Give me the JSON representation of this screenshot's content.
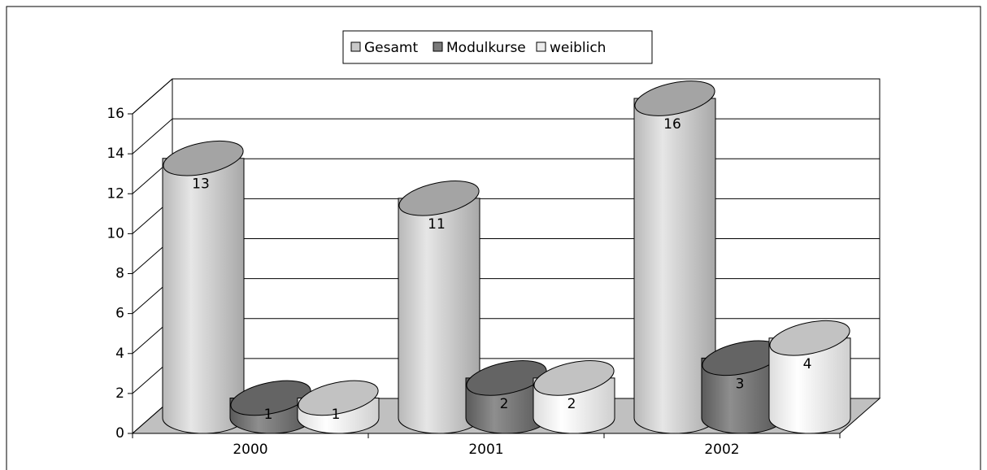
{
  "chart_data": {
    "type": "bar3d",
    "categories": [
      "2000",
      "2001",
      "2002"
    ],
    "series": [
      {
        "name": "Gesamt",
        "color": "#c8c8c8",
        "values": [
          13,
          11,
          16
        ]
      },
      {
        "name": "Modulkurse",
        "color": "#7a7a7a",
        "values": [
          1,
          2,
          3
        ]
      },
      {
        "name": "weiblich",
        "color": "#ececec",
        "values": [
          1,
          2,
          4
        ]
      }
    ],
    "ylim": [
      0,
      16
    ],
    "yticks": [
      0,
      2,
      4,
      6,
      8,
      10,
      12,
      14,
      16
    ],
    "grid": true,
    "legend": "top"
  }
}
